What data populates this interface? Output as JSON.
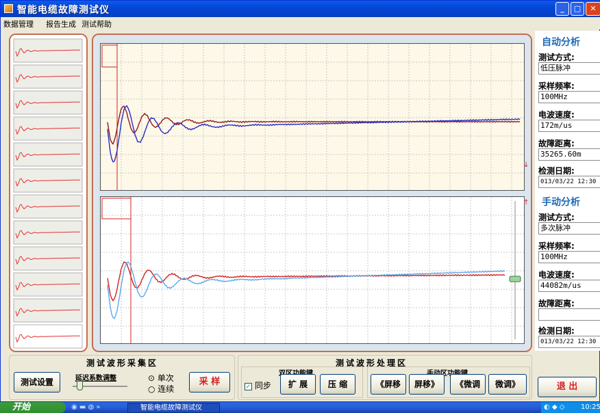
{
  "window": {
    "title": "智能电缆故障测试仪"
  },
  "menu": [
    "数据管理",
    "报告生成",
    "测试帮助"
  ],
  "auto": {
    "heading": "自动分析",
    "fields": [
      {
        "label": "测试方式:",
        "value": "低压脉冲"
      },
      {
        "label": "采样频率:",
        "value": "100MHz"
      },
      {
        "label": "电波速度:",
        "value": "172m/us"
      },
      {
        "label": "故障距离:",
        "value": "35265.60m"
      },
      {
        "label": "检测日期:",
        "value": "013/03/22 12:30"
      }
    ]
  },
  "manual": {
    "heading": "手动分析",
    "fields": [
      {
        "label": "测试方式:",
        "value": "多次脉冲"
      },
      {
        "label": "采样频率:",
        "value": "100MHz"
      },
      {
        "label": "电波速度:",
        "value": "44082m/us"
      },
      {
        "label": "故障距离:",
        "value": ""
      },
      {
        "label": "检测日期:",
        "value": "013/03/22 12:30"
      }
    ]
  },
  "acquisition": {
    "title": "测试波形采集区",
    "settings_button": "测试设置",
    "delay_label": "延迟系数调整",
    "radio_single": "单次",
    "radio_continuous": "连续",
    "sample_button": "采 样"
  },
  "processing": {
    "title": "测试波形处理区",
    "dual_label": "双区功能键",
    "sync_label": "同步",
    "expand_button": "扩 展",
    "compress_button": "压 缩",
    "manual_label": "手动区功能键",
    "shift_left_button": "《屏移",
    "shift_right_button": "屏移》",
    "fine_left_button": "《微调",
    "fine_right_button": "微调》"
  },
  "exit_button": "退 出",
  "taskbar": {
    "start": "开始",
    "task": "智能电缆故障测试仪",
    "clock": "10:25"
  },
  "colors": {
    "upper_ref": "#8b1a1a",
    "upper_test": "#2828c8",
    "lower_ref": "#d42020",
    "lower_test": "#5aa8e8",
    "accent": "#1d69b4"
  }
}
